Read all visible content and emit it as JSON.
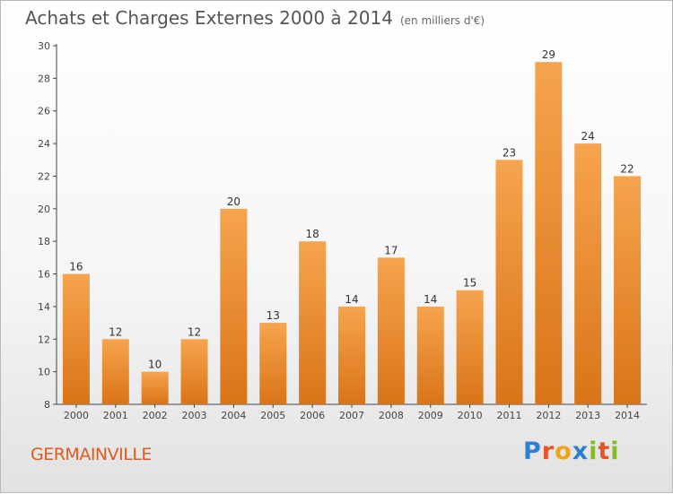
{
  "title": "Achats et Charges Externes 2000 à 2014",
  "unit_note": "(en milliers d'€)",
  "location": "GERMAINVILLE",
  "brand": {
    "text": "Proxiti",
    "letters": [
      {
        "ch": "P",
        "color": "#2f7fd0"
      },
      {
        "ch": "r",
        "color": "#e8542a"
      },
      {
        "ch": "o",
        "color": "#f2a21d"
      },
      {
        "ch": "x",
        "color": "#2f7fd0"
      },
      {
        "ch": "i",
        "color": "#86b82e"
      },
      {
        "ch": "t",
        "color": "#e8542a"
      },
      {
        "ch": "i",
        "color": "#86b82e"
      }
    ]
  },
  "colors": {
    "bar_top": "#f6a44e",
    "bar_bottom": "#d97418",
    "title": "#555555",
    "location": "#e25a1c"
  },
  "chart_data": {
    "type": "bar",
    "categories": [
      "2000",
      "2001",
      "2002",
      "2003",
      "2004",
      "2005",
      "2006",
      "2007",
      "2008",
      "2009",
      "2010",
      "2011",
      "2012",
      "2013",
      "2014"
    ],
    "values": [
      16,
      12,
      10,
      12,
      20,
      13,
      18,
      14,
      17,
      14,
      15,
      23,
      29,
      24,
      22
    ],
    "ylim": [
      8,
      30
    ],
    "yticks": [
      8,
      10,
      12,
      14,
      16,
      18,
      20,
      22,
      24,
      26,
      28,
      30
    ],
    "grid": false
  }
}
